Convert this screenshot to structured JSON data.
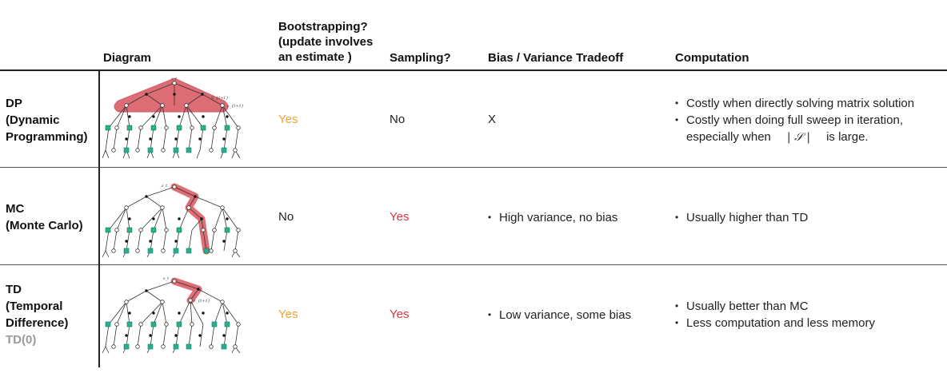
{
  "headers": {
    "diagram": "Diagram",
    "bootstrapping": [
      "Bootstrapping?",
      "(update involves",
      "an estimate )"
    ],
    "sampling": "Sampling?",
    "bias": "Bias / Variance Tradeoff",
    "computation": "Computation"
  },
  "rows": [
    {
      "label": [
        "DP",
        "(Dynamic",
        "Programming)"
      ],
      "bootstrapping": "Yes",
      "sampling": "No",
      "bias": "X",
      "computation": [
        "Costly when directly solving matrix solution",
        "Costly when doing full sweep in iteration,"
      ],
      "computation_cont_pre": "especially when",
      "computation_symbol": "| 𝒮 |",
      "computation_cont_post": "is large.",
      "diagram_labels": {
        "root": "s_t",
        "next": "S_{t+1}",
        "edge": "s_{t+1}"
      }
    },
    {
      "label": [
        "MC",
        "(Monte Carlo)"
      ],
      "bootstrapping": "No",
      "sampling": "Yes",
      "bias": [
        "High variance, no bias"
      ],
      "computation": [
        "Usually higher than TD"
      ],
      "diagram_labels": {
        "root": "s_t"
      }
    },
    {
      "label": [
        "TD",
        "(Temporal",
        "Difference)"
      ],
      "label_sub": "TD(0)",
      "bootstrapping": "Yes",
      "sampling": "Yes",
      "bias": [
        "Low variance, some bias"
      ],
      "computation": [
        "Usually better than MC",
        "Less computation and less memory"
      ],
      "diagram_labels": {
        "root": "s_t",
        "next": "s_{t+1}"
      }
    }
  ],
  "colors": {
    "highlight": "#d9535c",
    "terminal": "#27b08e",
    "yes_orange": "#f0a030",
    "yes_red": "#d9333f"
  }
}
